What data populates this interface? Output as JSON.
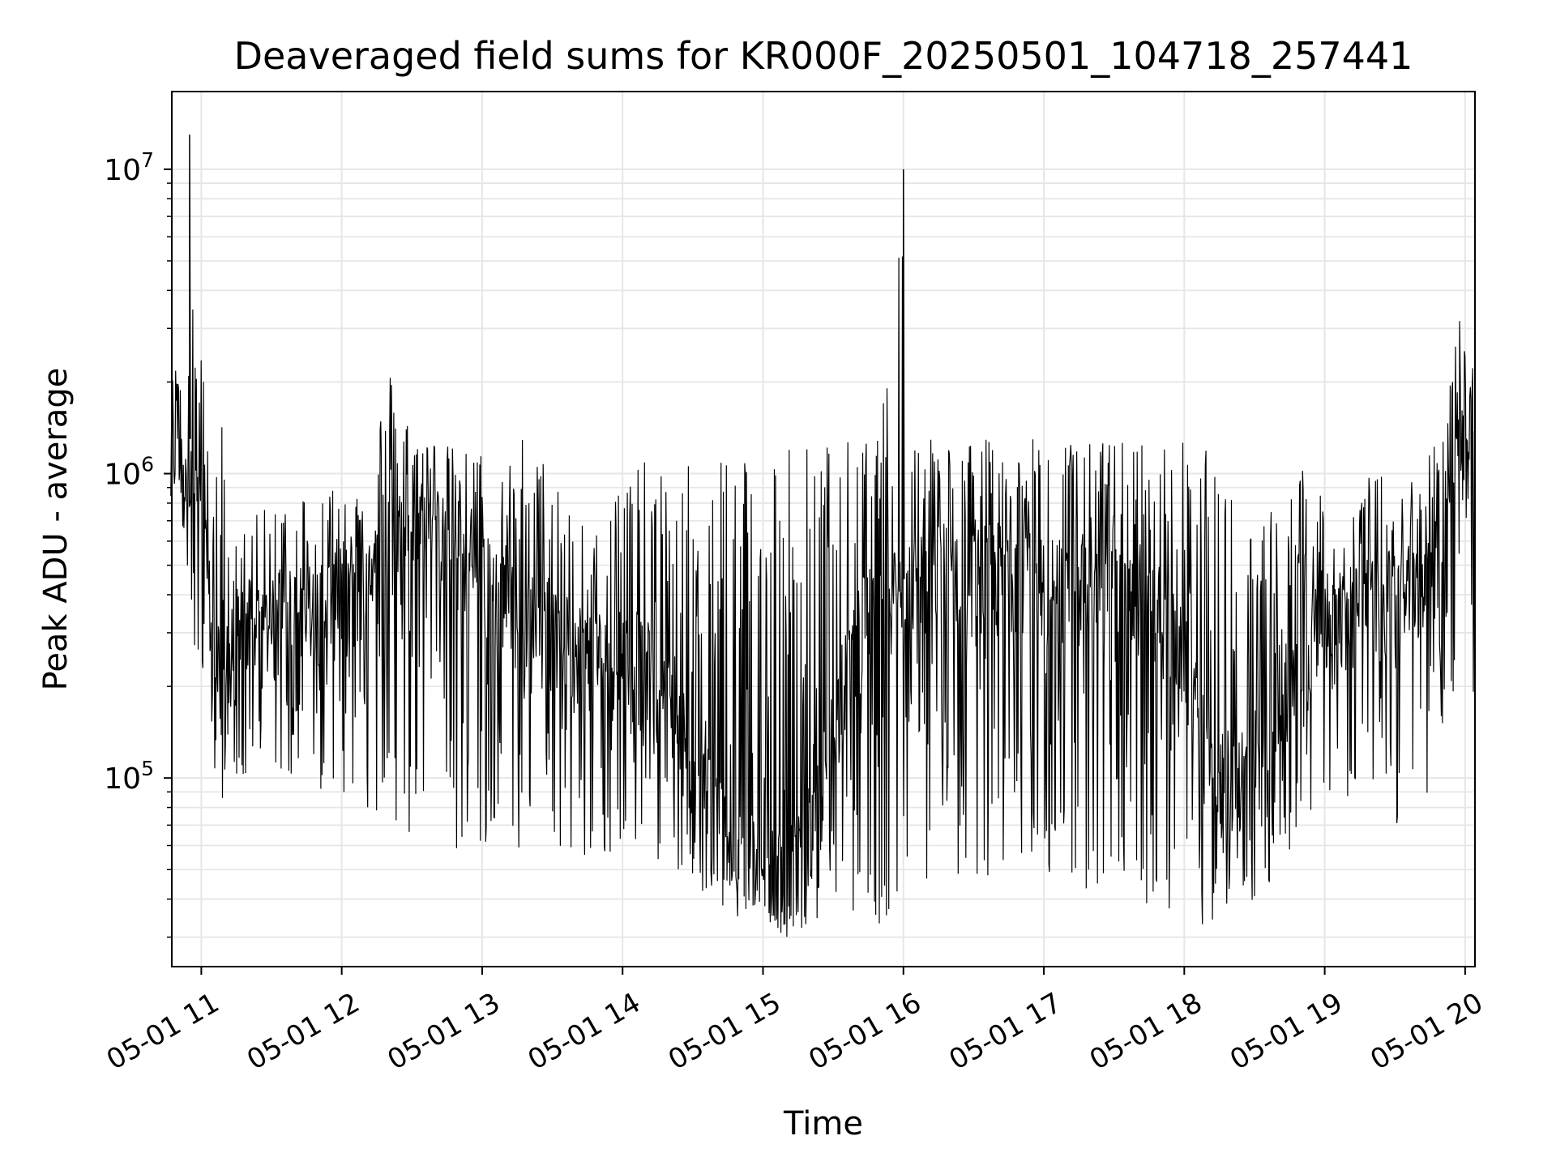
{
  "chart_data": {
    "type": "line",
    "title": "Deaveraged field sums for KR000F_20250501_104718_257441",
    "xlabel": "Time",
    "ylabel": "Peak ADU - average",
    "yscale": "log",
    "ylim": [
      24000,
      18000000
    ],
    "xlim_hours": [
      10.79,
      20.07
    ],
    "x_ticks": [
      {
        "label": "05-01 11",
        "hour": 11
      },
      {
        "label": "05-01 12",
        "hour": 12
      },
      {
        "label": "05-01 13",
        "hour": 13
      },
      {
        "label": "05-01 14",
        "hour": 14
      },
      {
        "label": "05-01 15",
        "hour": 15
      },
      {
        "label": "05-01 16",
        "hour": 16
      },
      {
        "label": "05-01 17",
        "hour": 17
      },
      {
        "label": "05-01 18",
        "hour": 18
      },
      {
        "label": "05-01 19",
        "hour": 19
      },
      {
        "label": "05-01 20",
        "hour": 20
      }
    ],
    "y_ticks": [
      {
        "base": "10",
        "exp": "5",
        "value": 100000
      },
      {
        "base": "10",
        "exp": "6",
        "value": 1000000
      },
      {
        "base": "10",
        "exp": "7",
        "value": 10000000
      }
    ],
    "grid": true,
    "line_color": "#000000",
    "grid_color": "#e6e6e6",
    "series": [
      {
        "x_time": [
          "05-01 10:47",
          "05-01 10:50",
          "05-01 10:53",
          "05-01 10:55",
          "05-01 10:58",
          "05-01 11:02",
          "05-01 11:06",
          "05-01 11:09",
          "05-01 11:12",
          "05-01 11:15",
          "05-01 11:20",
          "05-01 11:30",
          "05-01 11:40",
          "05-01 11:50",
          "05-01 12:00",
          "05-01 12:10",
          "05-01 12:20",
          "05-01 12:30",
          "05-01 12:40",
          "05-01 12:50",
          "05-01 13:00",
          "05-01 13:10",
          "05-01 13:20",
          "05-01 13:30",
          "05-01 13:40",
          "05-01 13:50",
          "05-01 14:00",
          "05-01 14:10",
          "05-01 14:20",
          "05-01 14:30",
          "05-01 14:40",
          "05-01 14:50",
          "05-01 15:00",
          "05-01 15:10",
          "05-01 15:20",
          "05-01 15:30",
          "05-01 15:40",
          "05-01 15:50",
          "05-01 16:00",
          "05-01 16:03",
          "05-01 16:10",
          "05-01 16:20",
          "05-01 16:30",
          "05-01 16:40",
          "05-01 16:50",
          "05-01 17:00",
          "05-01 17:10",
          "05-01 17:20",
          "05-01 17:30",
          "05-01 17:40",
          "05-01 17:50",
          "05-01 18:00",
          "05-01 18:10",
          "05-01 18:20",
          "05-01 18:30",
          "05-01 18:40",
          "05-01 18:50",
          "05-01 19:00",
          "05-01 19:10",
          "05-01 19:20",
          "05-01 19:30",
          "05-01 19:40",
          "05-01 19:50",
          "05-01 19:57",
          "05-01 20:00",
          "05-01 20:04"
        ],
        "y_typical": [
          1000000,
          1500000,
          1200000,
          1300000,
          900000,
          500000,
          250000,
          150000,
          250000,
          300000,
          300000,
          320000,
          350000,
          380000,
          400000,
          450000,
          600000,
          700000,
          650000,
          550000,
          450000,
          400000,
          350000,
          300000,
          280000,
          260000,
          250000,
          230000,
          180000,
          120000,
          80000,
          55000,
          55000,
          50000,
          60000,
          150000,
          300000,
          400000,
          450000,
          450000,
          500000,
          500000,
          480000,
          500000,
          500000,
          450000,
          420000,
          420000,
          400000,
          380000,
          350000,
          250000,
          120000,
          100000,
          120000,
          200000,
          250000,
          300000,
          350000,
          380000,
          400000,
          450000,
          600000,
          1500000,
          1200000,
          900000
        ],
        "y_high": [
          2000000,
          2600000,
          3000000,
          13000000,
          2600000,
          2400000,
          1000000,
          1800000,
          800000,
          600000,
          700000,
          800000,
          900000,
          900000,
          1000000,
          900000,
          2300000,
          1500000,
          1300000,
          1200000,
          1200000,
          1000000,
          1600000,
          900000,
          800000,
          1100000,
          1000000,
          1100000,
          1000000,
          1100000,
          1400000,
          1400000,
          1400000,
          1400000,
          1300000,
          1300000,
          1300000,
          1300000,
          10000000,
          1300000,
          1400000,
          1300000,
          1300000,
          1300000,
          1300000,
          1300000,
          1300000,
          1300000,
          1300000,
          1300000,
          1300000,
          1300000,
          1200000,
          900000,
          700000,
          800000,
          1100000,
          800000,
          900000,
          1000000,
          1000000,
          1000000,
          1500000,
          3600000,
          2600000,
          2500000
        ],
        "y_low": [
          800000,
          700000,
          600000,
          400000,
          220000,
          200000,
          90000,
          85000,
          130000,
          100000,
          90000,
          100000,
          100000,
          90000,
          90000,
          80000,
          55000,
          55000,
          60000,
          50000,
          50000,
          45000,
          60000,
          60000,
          50000,
          50000,
          55000,
          55000,
          50000,
          45000,
          36000,
          35000,
          34000,
          30000,
          33000,
          35000,
          35000,
          33000,
          35000,
          40000,
          45000,
          45000,
          45000,
          45000,
          45000,
          45000,
          45000,
          42000,
          40000,
          40000,
          36000,
          33000,
          33000,
          33000,
          40000,
          45000,
          60000,
          70000,
          70000,
          70000,
          70000,
          80000,
          100000,
          230000,
          300000,
          150000
        ]
      }
    ]
  }
}
